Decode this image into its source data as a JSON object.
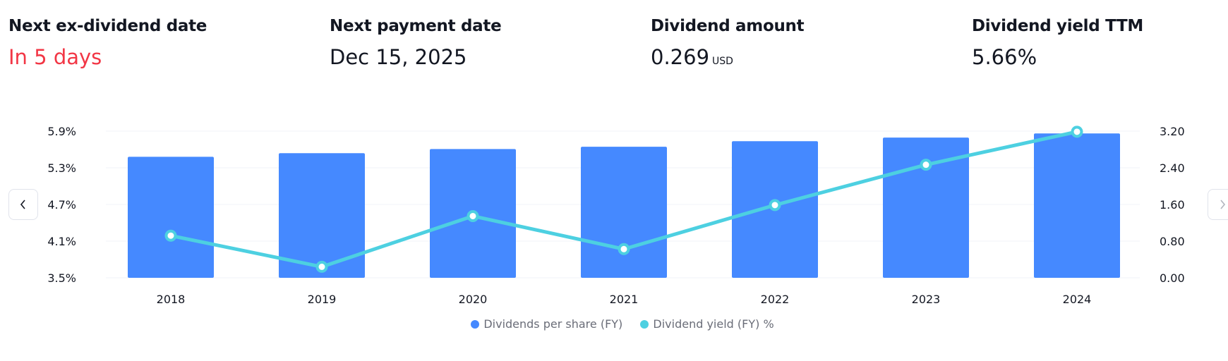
{
  "stats": [
    {
      "title": "Next ex-dividend date",
      "value": "In 5 days",
      "unit": ""
    },
    {
      "title": "Next payment date",
      "value": "Dec 15, 2025",
      "unit": ""
    },
    {
      "title": "Dividend amount",
      "value": "0.269",
      "unit": "USD"
    },
    {
      "title": "Dividend yield TTM",
      "value": "5.66%",
      "unit": ""
    }
  ],
  "colors": {
    "bars": "#4589ff",
    "line": "#4dd0e1",
    "highlight": "#f23645"
  },
  "nav": {
    "prev_icon": "chevron-left-icon",
    "next_icon": "chevron-right-icon"
  },
  "chart_data": {
    "type": "bar+line",
    "categories": [
      "2018",
      "2019",
      "2020",
      "2021",
      "2022",
      "2023",
      "2024"
    ],
    "series": [
      {
        "name": "Dividends per share (FY)",
        "type": "bar",
        "axis": "right",
        "values": [
          2.64,
          2.72,
          2.81,
          2.86,
          2.98,
          3.06,
          3.15
        ]
      },
      {
        "name": "Dividend yield (FY) %",
        "type": "line",
        "axis": "left",
        "values": [
          4.19,
          3.68,
          4.51,
          3.97,
          4.69,
          5.35,
          5.89
        ]
      }
    ],
    "left_axis": {
      "ticks": [
        "3.5%",
        "4.1%",
        "4.7%",
        "5.3%",
        "5.9%"
      ],
      "range": [
        3.5,
        5.9
      ]
    },
    "right_axis": {
      "ticks": [
        "0.00",
        "0.80",
        "1.60",
        "2.40",
        "3.20"
      ],
      "range": [
        0,
        3.2
      ]
    },
    "grid": true,
    "legend": "bottom"
  }
}
